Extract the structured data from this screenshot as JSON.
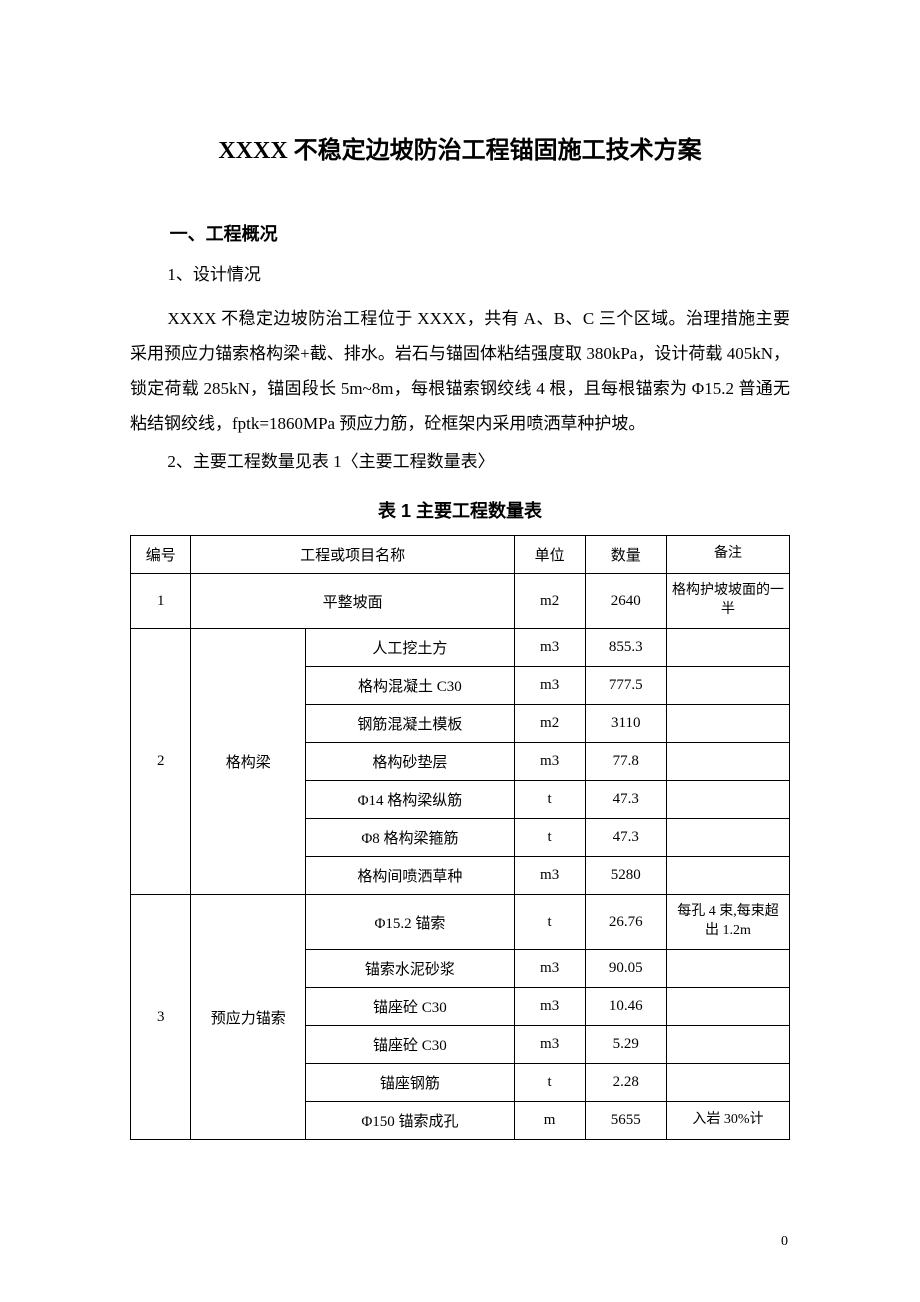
{
  "doc": {
    "title": "XXXX 不稳定边坡防治工程锚固施工技术方案",
    "section1_heading": "一、工程概况",
    "sub1": "1、设计情况",
    "para1": "XXXX 不稳定边坡防治工程位于 XXXX，共有 A、B、C 三个区域。治理措施主要采用预应力锚索格构梁+截、排水。岩石与锚固体粘结强度取 380kPa，设计荷载 405kN，锁定荷载 285kN，锚固段长 5m~8m，每根锚索钢绞线 4 根，且每根锚索为 Φ15.2 普通无粘结钢绞线，fptk=1860MPa 预应力筋，砼框架内采用喷洒草种护坡。",
    "sub2": "2、主要工程数量见表 1〈主要工程数量表〉",
    "table_caption": "表 1 主要工程数量表",
    "page_number": "0"
  },
  "table": {
    "headers": {
      "num": "编号",
      "name": "工程或项目名称",
      "unit": "单位",
      "qty": "数量",
      "note": "备注"
    },
    "rows": [
      {
        "num": "1",
        "sub": "",
        "name": "平整坡面",
        "unit": "m2",
        "qty": "2640",
        "note": "格构护坡坡面的一半",
        "name_span": 2
      },
      {
        "num": "2",
        "sub": "格构梁",
        "name": "人工挖土方",
        "unit": "m3",
        "qty": "855.3",
        "note": "",
        "rowspan": 7
      },
      {
        "num": "",
        "sub": "",
        "name": "格构混凝土 C30",
        "unit": "m3",
        "qty": "777.5",
        "note": ""
      },
      {
        "num": "",
        "sub": "",
        "name": "钢筋混凝土模板",
        "unit": "m2",
        "qty": "3110",
        "note": ""
      },
      {
        "num": "",
        "sub": "",
        "name": "格构砂垫层",
        "unit": "m3",
        "qty": "77.8",
        "note": ""
      },
      {
        "num": "",
        "sub": "",
        "name": "Φ14 格构梁纵筋",
        "unit": "t",
        "qty": "47.3",
        "note": ""
      },
      {
        "num": "",
        "sub": "",
        "name": "Φ8 格构梁箍筋",
        "unit": "t",
        "qty": "47.3",
        "note": ""
      },
      {
        "num": "",
        "sub": "",
        "name": "格构间喷洒草种",
        "unit": "m3",
        "qty": "5280",
        "note": ""
      },
      {
        "num": "3",
        "sub": "预应力锚索",
        "name": "Φ15.2 锚索",
        "unit": "t",
        "qty": "26.76",
        "note": "每孔 4 束,每束超出 1.2m",
        "rowspan": 6
      },
      {
        "num": "",
        "sub": "",
        "name": "锚索水泥砂浆",
        "unit": "m3",
        "qty": "90.05",
        "note": ""
      },
      {
        "num": "",
        "sub": "",
        "name": "锚座砼 C30",
        "unit": "m3",
        "qty": "10.46",
        "note": ""
      },
      {
        "num": "",
        "sub": "",
        "name": "锚座砼 C30",
        "unit": "m3",
        "qty": "5.29",
        "note": ""
      },
      {
        "num": "",
        "sub": "",
        "name": "锚座钢筋",
        "unit": "t",
        "qty": "2.28",
        "note": ""
      },
      {
        "num": "",
        "sub": "",
        "name": "Φ150 锚索成孔",
        "unit": "m",
        "qty": "5655",
        "note": "入岩 30%计"
      }
    ]
  }
}
